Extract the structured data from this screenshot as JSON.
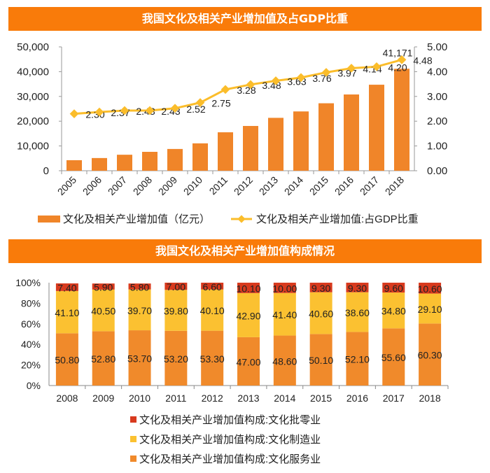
{
  "chart_data": [
    {
      "type": "bar+line",
      "title": "我国文化及相关产业增加值及占GDP比重",
      "categories": [
        "2005",
        "2006",
        "2007",
        "2008",
        "2009",
        "2010",
        "2011",
        "2012",
        "2013",
        "2014",
        "2015",
        "2016",
        "2017",
        "2018"
      ],
      "series": [
        {
          "name": "文化及相关产业增加值（亿元）",
          "type": "bar",
          "axis": "left",
          "values": [
            4253,
            5123,
            6455,
            7630,
            8786,
            11052,
            15516,
            18071,
            21351,
            23940,
            27235,
            30785,
            34722,
            41171
          ],
          "labeled": [
            false,
            false,
            false,
            false,
            false,
            false,
            false,
            false,
            false,
            false,
            false,
            false,
            false,
            true
          ],
          "label_texts": {
            "13": "41,171"
          }
        },
        {
          "name": "文化及相关产业增加值:占GDP比重",
          "type": "line",
          "axis": "right",
          "values": [
            2.3,
            2.37,
            2.43,
            2.43,
            2.52,
            2.75,
            3.28,
            3.48,
            3.63,
            3.76,
            3.97,
            4.14,
            4.2,
            4.48
          ]
        }
      ],
      "ylim": [
        0,
        50000
      ],
      "yticks": [
        "0",
        "10,000",
        "20,000",
        "30,000",
        "40,000",
        "50,000"
      ],
      "y2lim": [
        0,
        5
      ],
      "y2ticks": [
        "0.00",
        "1.00",
        "2.00",
        "3.00",
        "4.00",
        "5.00"
      ],
      "legend": "bottom",
      "colors": {
        "bar": "#F08529",
        "line": "#FBBD2B"
      }
    },
    {
      "type": "stacked-bar",
      "title": "我国文化及相关产业增加值构成情况",
      "categories": [
        "2008",
        "2009",
        "2010",
        "2011",
        "2012",
        "2013",
        "2014",
        "2015",
        "2016",
        "2017",
        "2018"
      ],
      "series": [
        {
          "name": "文化及相关产业增加值构成:文化服务业",
          "values": [
            50.8,
            52.8,
            53.7,
            53.2,
            53.3,
            47.0,
            48.6,
            50.1,
            52.1,
            55.6,
            60.3
          ],
          "color": "#F08A2B"
        },
        {
          "name": "文化及相关产业增加值构成:文化制造业",
          "values": [
            41.1,
            40.5,
            39.7,
            39.8,
            40.1,
            42.9,
            41.4,
            40.6,
            38.6,
            34.8,
            29.1
          ],
          "color": "#FBC131"
        },
        {
          "name": "文化及相关产业增加值构成:文化批零业",
          "values": [
            7.4,
            5.9,
            5.8,
            7.0,
            6.6,
            10.1,
            10.0,
            9.3,
            9.3,
            9.6,
            10.6
          ],
          "color": "#D83A1E"
        }
      ],
      "ylim": [
        0,
        100
      ],
      "yticks": [
        "0%",
        "20%",
        "40%",
        "60%",
        "80%",
        "100%"
      ],
      "legend": "bottom"
    }
  ]
}
